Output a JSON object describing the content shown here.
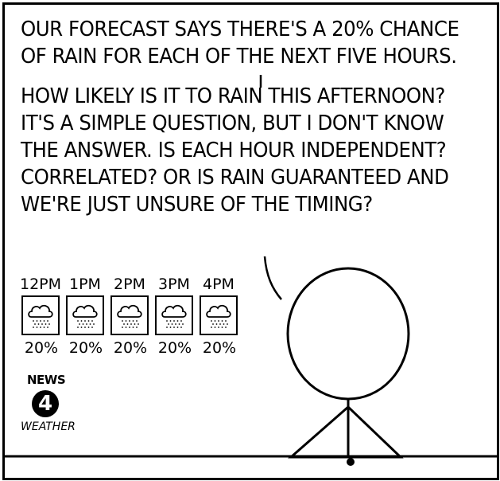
{
  "caption": {
    "lines": [
      "OUR FORECAST SAYS THERE'S A 20% CHANCE",
      "OF RAIN FOR EACH OF THE NEXT FIVE HOURS.",
      "HOW LIKELY IS IT TO RAIN THIS AFTERNOON?",
      "IT'S A SIMPLE QUESTION, BUT I DON'T KNOW",
      "THE ANSWER.  IS EACH HOUR INDEPENDENT?",
      "CORRELATED? OR IS RAIN GUARANTEED AND",
      "WE'RE JUST UNSURE OF THE TIMING?"
    ]
  },
  "forecast": {
    "times": [
      "12PM",
      "1PM",
      "2PM",
      "3PM",
      "4PM"
    ],
    "percents": [
      "20%",
      "20%",
      "20%",
      "20%",
      "20%"
    ],
    "icon": "rain-cloud-icon"
  },
  "logo": {
    "news": "NEWS",
    "number": "4",
    "weather": "WEATHER"
  },
  "colors": {
    "ink": "#000000",
    "paper": "#ffffff"
  }
}
